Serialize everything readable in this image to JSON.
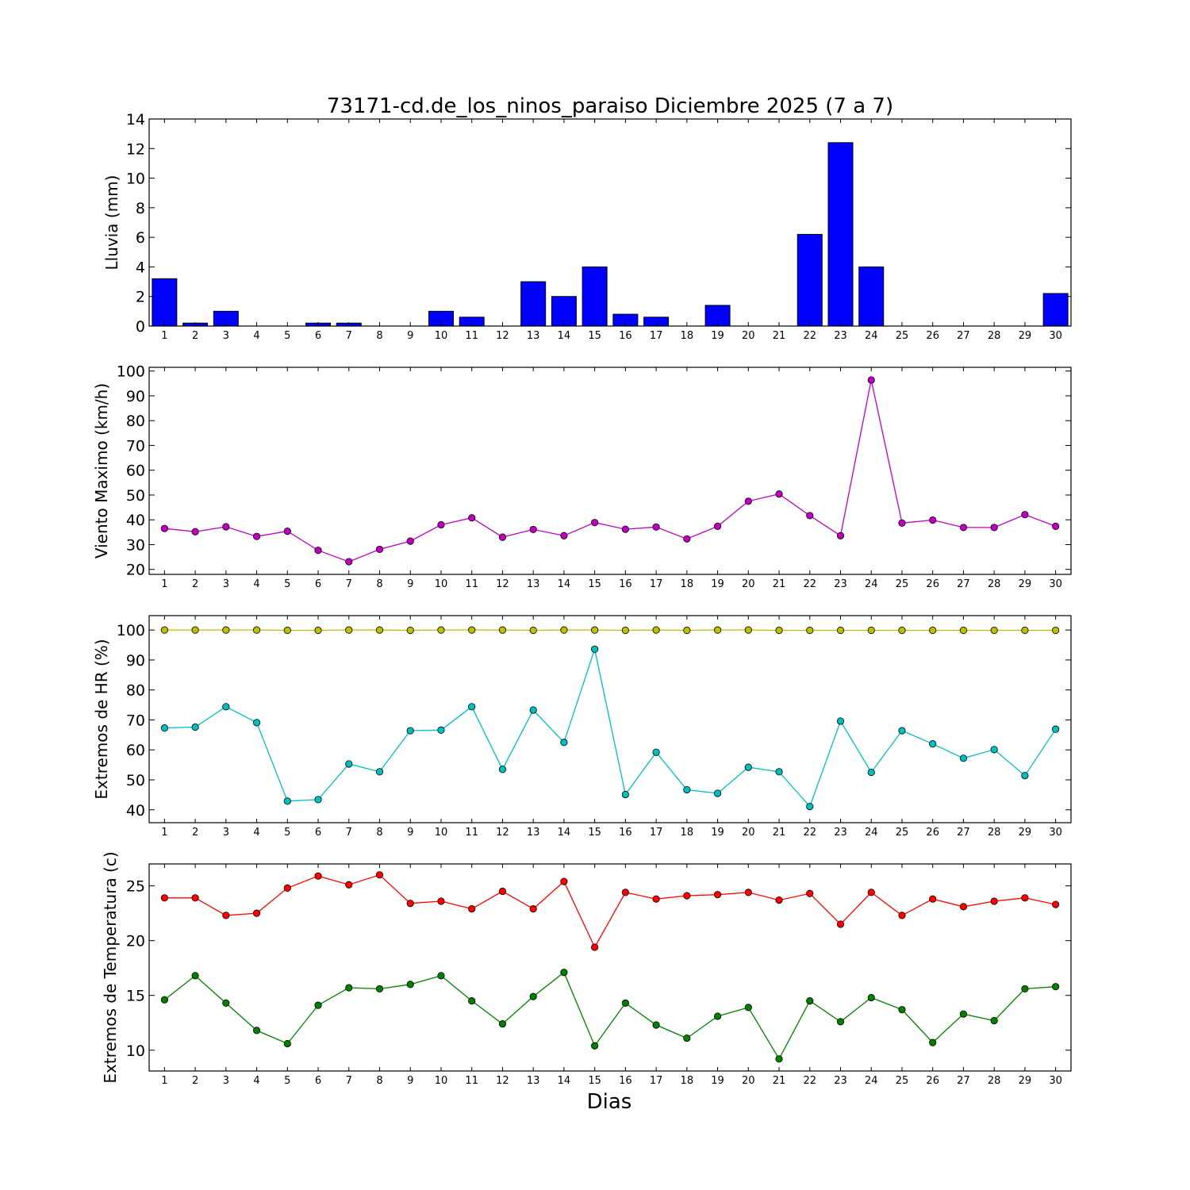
{
  "chart_data": [
    {
      "type": "bar",
      "title": "73171-cd.de_los_ninos_paraiso Diciembre 2025  (7 a 7)",
      "ylabel": "Lluvia (mm)",
      "xlabel": "",
      "ylim": [
        0,
        14
      ],
      "yticks": [
        0,
        2,
        4,
        6,
        8,
        10,
        12,
        14
      ],
      "categories": [
        "1",
        "2",
        "3",
        "4",
        "5",
        "6",
        "7",
        "8",
        "9",
        "10",
        "11",
        "12",
        "13",
        "14",
        "15",
        "16",
        "17",
        "18",
        "19",
        "20",
        "21",
        "22",
        "23",
        "24",
        "25",
        "26",
        "27",
        "28",
        "29",
        "30"
      ],
      "series": [
        {
          "name": "Lluvia",
          "color": "#0000ff",
          "values": [
            3.2,
            0.2,
            1.0,
            0,
            0,
            0.2,
            0.2,
            0,
            0,
            1.0,
            0.6,
            0,
            3.0,
            2.0,
            4.0,
            0.8,
            0.6,
            0,
            1.4,
            0,
            0,
            6.2,
            12.4,
            4.0,
            0,
            0,
            0,
            0,
            0,
            2.2
          ]
        }
      ]
    },
    {
      "type": "line",
      "ylabel": "Viento Maximo (km/h)",
      "xlabel": "",
      "ylim": [
        18,
        101.5
      ],
      "yticks": [
        20,
        30,
        40,
        50,
        60,
        70,
        80,
        90,
        100
      ],
      "categories": [
        "1",
        "2",
        "3",
        "4",
        "5",
        "6",
        "7",
        "8",
        "9",
        "10",
        "11",
        "12",
        "13",
        "14",
        "15",
        "16",
        "17",
        "18",
        "19",
        "20",
        "21",
        "22",
        "23",
        "24",
        "25",
        "26",
        "27",
        "28",
        "29",
        "30"
      ],
      "series": [
        {
          "name": "Viento Maximo",
          "color": "#bf00bf",
          "values": [
            36.5,
            35.2,
            37.2,
            33.3,
            35.4,
            27.7,
            23.1,
            28.1,
            31.4,
            38.0,
            40.8,
            33.0,
            36.1,
            33.6,
            38.9,
            36.2,
            37.1,
            32.3,
            37.4,
            47.5,
            50.4,
            41.7,
            33.6,
            96.4,
            38.7,
            39.9,
            36.9,
            36.9,
            42.1,
            37.4
          ]
        }
      ]
    },
    {
      "type": "line",
      "ylabel": "Extremos de HR (%)",
      "xlabel": "",
      "ylim": [
        35.7,
        104.8
      ],
      "yticks": [
        40,
        50,
        60,
        70,
        80,
        90,
        100
      ],
      "categories": [
        "1",
        "2",
        "3",
        "4",
        "5",
        "6",
        "7",
        "8",
        "9",
        "10",
        "11",
        "12",
        "13",
        "14",
        "15",
        "16",
        "17",
        "18",
        "19",
        "20",
        "21",
        "22",
        "23",
        "24",
        "25",
        "26",
        "27",
        "28",
        "29",
        "30"
      ],
      "series": [
        {
          "name": "HR maxima",
          "color": "#bfbf00",
          "values": [
            100,
            100,
            100,
            100,
            99.9,
            99.9,
            100,
            100,
            99.9,
            100,
            100,
            100,
            99.9,
            100,
            100,
            99.9,
            100,
            99.9,
            100,
            100,
            99.9,
            99.9,
            99.9,
            99.9,
            99.9,
            99.9,
            99.9,
            99.9,
            99.9,
            99.9
          ]
        },
        {
          "name": "HR minima",
          "color": "#00bfbf",
          "values": [
            67.3,
            67.6,
            74.4,
            69.1,
            42.9,
            43.4,
            55.3,
            52.7,
            66.4,
            66.6,
            74.4,
            53.5,
            73.3,
            62.5,
            93.6,
            45.1,
            59.2,
            46.7,
            45.5,
            54.2,
            52.7,
            41.1,
            69.6,
            52.5,
            66.4,
            62.0,
            57.2,
            60.1,
            51.4,
            66.9
          ]
        }
      ]
    },
    {
      "type": "line",
      "ylabel": "Extremos de Temperatura (c)",
      "xlabel": "Dias",
      "ylim": [
        8.1,
        27.0
      ],
      "yticks": [
        10,
        15,
        20,
        25
      ],
      "categories": [
        "1",
        "2",
        "3",
        "4",
        "5",
        "6",
        "7",
        "8",
        "9",
        "10",
        "11",
        "12",
        "13",
        "14",
        "15",
        "16",
        "17",
        "18",
        "19",
        "20",
        "21",
        "22",
        "23",
        "24",
        "25",
        "26",
        "27",
        "28",
        "29",
        "30"
      ],
      "series": [
        {
          "name": "Temperatura maxima",
          "color": "#ff0000",
          "values": [
            23.9,
            23.9,
            22.3,
            22.5,
            24.8,
            25.9,
            25.1,
            26.0,
            23.4,
            23.6,
            22.9,
            24.5,
            22.9,
            25.4,
            19.4,
            24.4,
            23.8,
            24.1,
            24.2,
            24.4,
            23.7,
            24.3,
            21.5,
            24.4,
            22.3,
            23.8,
            23.1,
            23.6,
            23.9,
            23.3
          ]
        },
        {
          "name": "Temperatura minima",
          "color": "#007f00",
          "values": [
            14.6,
            16.8,
            14.3,
            11.8,
            10.6,
            14.1,
            15.7,
            15.6,
            16.0,
            16.8,
            14.5,
            12.4,
            14.9,
            17.1,
            10.4,
            14.3,
            12.3,
            11.1,
            13.1,
            13.9,
            9.2,
            14.5,
            12.6,
            14.8,
            13.7,
            10.7,
            13.3,
            12.7,
            15.6,
            15.8
          ]
        }
      ]
    }
  ]
}
